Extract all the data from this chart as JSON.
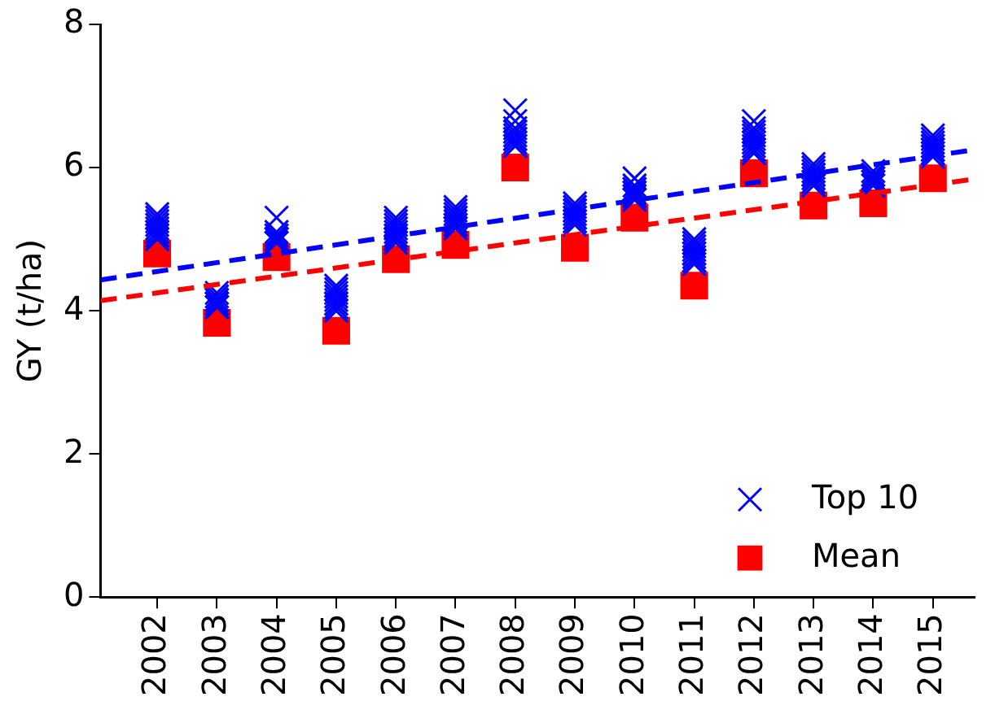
{
  "chart_data": {
    "type": "scatter",
    "ylabel": "GY (t/ha)",
    "xlim": [
      2001.05,
      2015.7
    ],
    "xticks": [
      2002,
      2003,
      2004,
      2005,
      2006,
      2007,
      2008,
      2009,
      2010,
      2011,
      2012,
      2013,
      2014,
      2015
    ],
    "ylim": [
      0,
      8
    ],
    "yticks": [
      0,
      2,
      4,
      6,
      8
    ],
    "grid": false,
    "legend": "bottom right",
    "series": [
      {
        "name": "Top 10",
        "color": "#0000ff",
        "marker": "cross",
        "x": [
          2002,
          2002,
          2002,
          2002,
          2002,
          2002,
          2002,
          2002,
          2002,
          2002,
          2003,
          2003,
          2003,
          2003,
          2003,
          2003,
          2003,
          2003,
          2003,
          2003,
          2004,
          2004,
          2004,
          2004,
          2004,
          2004,
          2004,
          2004,
          2004,
          2004,
          2005,
          2005,
          2005,
          2005,
          2005,
          2005,
          2005,
          2005,
          2005,
          2005,
          2006,
          2006,
          2006,
          2006,
          2006,
          2006,
          2006,
          2006,
          2006,
          2006,
          2007,
          2007,
          2007,
          2007,
          2007,
          2007,
          2007,
          2007,
          2007,
          2007,
          2008,
          2008,
          2008,
          2008,
          2008,
          2008,
          2008,
          2008,
          2008,
          2008,
          2009,
          2009,
          2009,
          2009,
          2009,
          2009,
          2009,
          2009,
          2009,
          2009,
          2010,
          2010,
          2010,
          2010,
          2010,
          2010,
          2010,
          2010,
          2010,
          2010,
          2011,
          2011,
          2011,
          2011,
          2011,
          2011,
          2011,
          2011,
          2011,
          2011,
          2012,
          2012,
          2012,
          2012,
          2012,
          2012,
          2012,
          2012,
          2012,
          2012,
          2013,
          2013,
          2013,
          2013,
          2013,
          2013,
          2013,
          2013,
          2013,
          2013,
          2014,
          2014,
          2014,
          2014,
          2014,
          2014,
          2014,
          2014,
          2014,
          2014,
          2015,
          2015,
          2015,
          2015,
          2015,
          2015,
          2015,
          2015,
          2015,
          2015
        ],
        "values": [
          5.35,
          5.3,
          5.25,
          5.2,
          5.15,
          5.1,
          5.1,
          5.05,
          5.0,
          5.0,
          4.25,
          4.2,
          4.15,
          4.15,
          4.1,
          4.1,
          4.1,
          4.05,
          4.05,
          4.05,
          5.3,
          5.1,
          5.05,
          5.05,
          5.0,
          5.0,
          5.0,
          4.95,
          4.95,
          4.95,
          4.35,
          4.3,
          4.25,
          4.2,
          4.15,
          4.1,
          4.1,
          4.05,
          4.0,
          4.0,
          5.3,
          5.25,
          5.2,
          5.15,
          5.1,
          5.05,
          5.05,
          5.0,
          5.0,
          4.95,
          5.45,
          5.4,
          5.35,
          5.3,
          5.3,
          5.25,
          5.2,
          5.2,
          5.15,
          5.15,
          6.8,
          6.65,
          6.55,
          6.5,
          6.45,
          6.4,
          6.4,
          6.35,
          6.3,
          6.3,
          5.5,
          5.45,
          5.4,
          5.4,
          5.35,
          5.3,
          5.3,
          5.25,
          5.25,
          5.2,
          5.85,
          5.75,
          5.7,
          5.7,
          5.65,
          5.65,
          5.6,
          5.6,
          5.55,
          5.55,
          5.0,
          4.95,
          4.9,
          4.85,
          4.8,
          4.8,
          4.75,
          4.7,
          4.7,
          4.65,
          6.65,
          6.55,
          6.5,
          6.45,
          6.4,
          6.35,
          6.3,
          6.25,
          6.25,
          6.2,
          6.05,
          6.0,
          5.95,
          5.9,
          5.9,
          5.85,
          5.8,
          5.8,
          5.75,
          5.75,
          5.95,
          5.9,
          5.9,
          5.85,
          5.85,
          5.8,
          5.8,
          5.8,
          5.75,
          5.75,
          6.45,
          6.4,
          6.35,
          6.3,
          6.3,
          6.25,
          6.25,
          6.2,
          6.2,
          6.15
        ]
      },
      {
        "name": "Mean",
        "color": "#ff0000",
        "marker": "square",
        "x": [
          2002,
          2003,
          2004,
          2005,
          2006,
          2007,
          2008,
          2009,
          2010,
          2011,
          2012,
          2013,
          2014,
          2015
        ],
        "values": [
          4.8,
          3.83,
          4.75,
          3.72,
          4.72,
          4.92,
          6.0,
          4.88,
          5.3,
          4.35,
          5.92,
          5.47,
          5.5,
          5.85
        ]
      },
      {
        "type": "line",
        "color": "#0000ff",
        "line_style": "dashed",
        "marker": "none",
        "x": [
          2001.05,
          2015.7
        ],
        "values": [
          4.43,
          6.25
        ]
      },
      {
        "type": "line",
        "color": "#ff0000",
        "line_style": "dashed",
        "marker": "none",
        "x": [
          2001.05,
          2015.7
        ],
        "values": [
          4.14,
          5.84
        ]
      }
    ]
  }
}
